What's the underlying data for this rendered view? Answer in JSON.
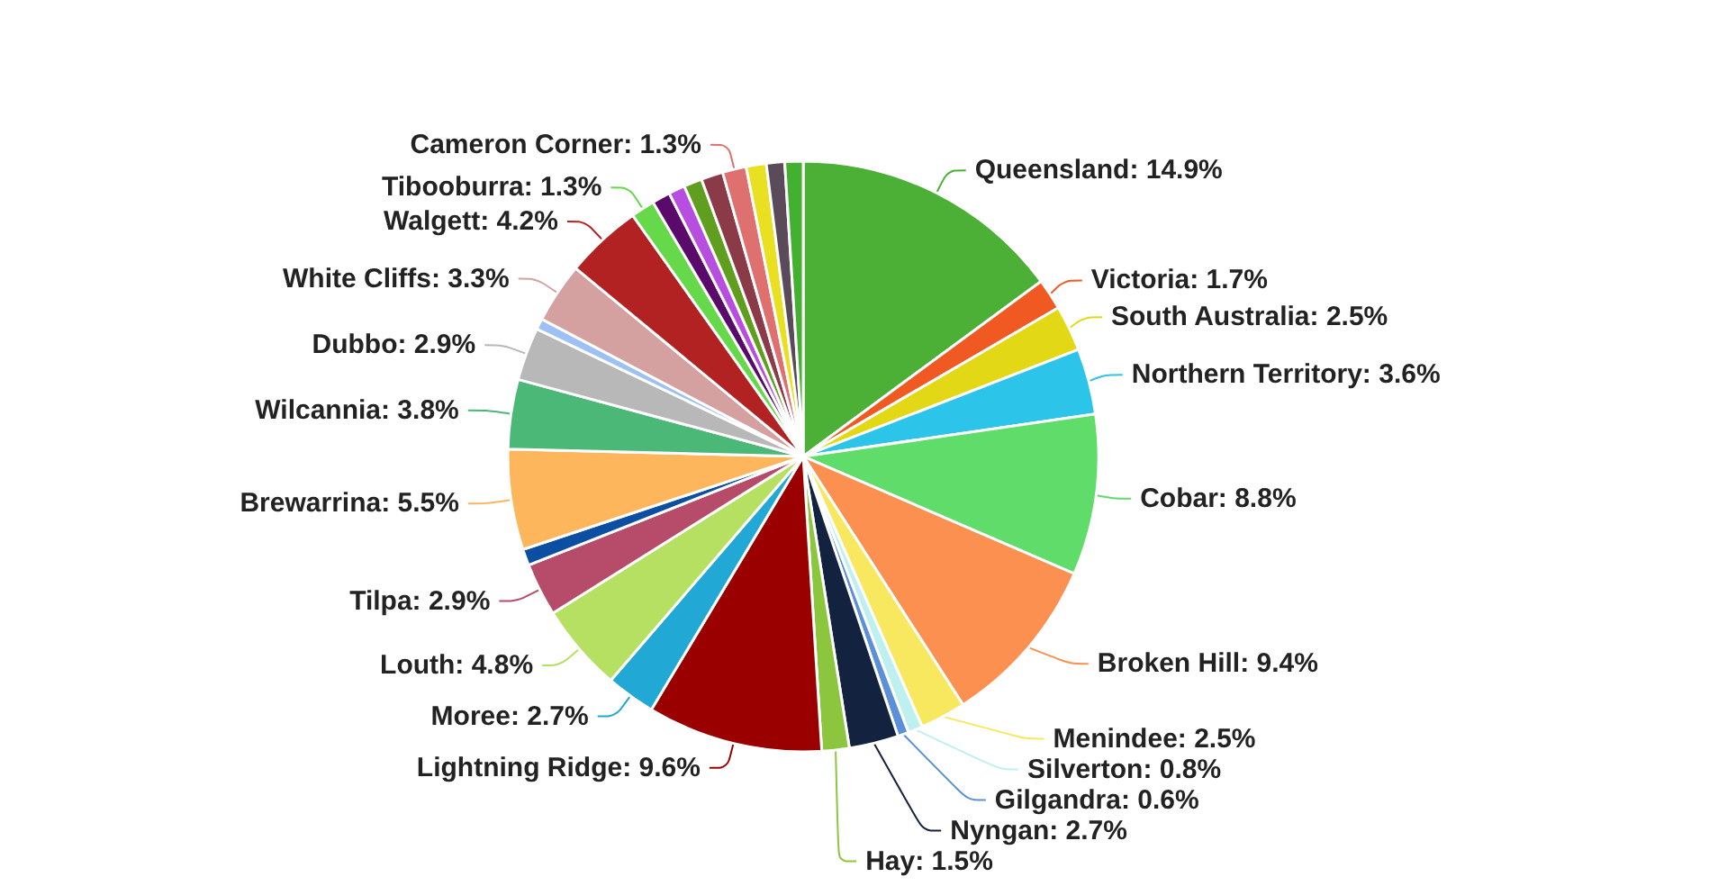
{
  "chart_data": {
    "type": "pie",
    "categories": [
      "Queensland",
      "Victoria",
      "South Australia",
      "Northern Territory",
      "Cobar",
      "Broken Hill",
      "Menindee",
      "Silverton",
      "Gilgandra",
      "Nyngan",
      "Hay",
      "Lightning Ridge",
      "Moree",
      "Louth",
      "Tilpa",
      null,
      "Brewarrina",
      "Wilcannia",
      "Dubbo",
      null,
      "White Cliffs",
      "Walgett",
      "Tibooburra",
      null,
      null,
      null,
      null,
      "Cameron Corner",
      null,
      null,
      null
    ],
    "values": [
      14.9,
      1.7,
      2.5,
      3.6,
      8.8,
      9.4,
      2.5,
      0.8,
      0.6,
      2.7,
      1.5,
      9.6,
      2.7,
      4.8,
      2.9,
      0.9,
      5.5,
      3.8,
      2.9,
      0.6,
      3.3,
      4.2,
      1.3,
      1.0,
      0.9,
      1.0,
      1.2,
      1.3,
      1.1,
      1.0,
      1.0
    ],
    "value_labels": [
      "14.9%",
      "1.7%",
      "2.5%",
      "3.6%",
      "8.8%",
      "9.4%",
      "2.5%",
      "0.8%",
      "0.6%",
      "2.7%",
      "1.5%",
      "9.6%",
      "2.7%",
      "4.8%",
      "2.9%",
      null,
      "5.5%",
      "3.8%",
      "2.9%",
      null,
      "3.3%",
      "4.2%",
      "1.3%",
      null,
      null,
      null,
      null,
      "1.3%",
      null,
      null,
      null
    ],
    "colors": [
      "#4caf36",
      "#f05a22",
      "#e2d816",
      "#2cc4e8",
      "#5fdc6a",
      "#fb9050",
      "#f8e860",
      "#bff0f0",
      "#5b8fd8",
      "#13223f",
      "#8cc63e",
      "#9b0000",
      "#22a8d4",
      "#b5e061",
      "#b64b6a",
      "#0b4ea2",
      "#fdb65c",
      "#4cb878",
      "#b8b8b8",
      "#9ec1f5",
      "#d4a0a0",
      "#b22222",
      "#66d94a",
      "#5a0a6a",
      "#b84ee0",
      "#5f9e1e",
      "#8b3a48",
      "#df7070",
      "#e8e020",
      "#5a4a5a",
      "#44b030"
    ]
  }
}
